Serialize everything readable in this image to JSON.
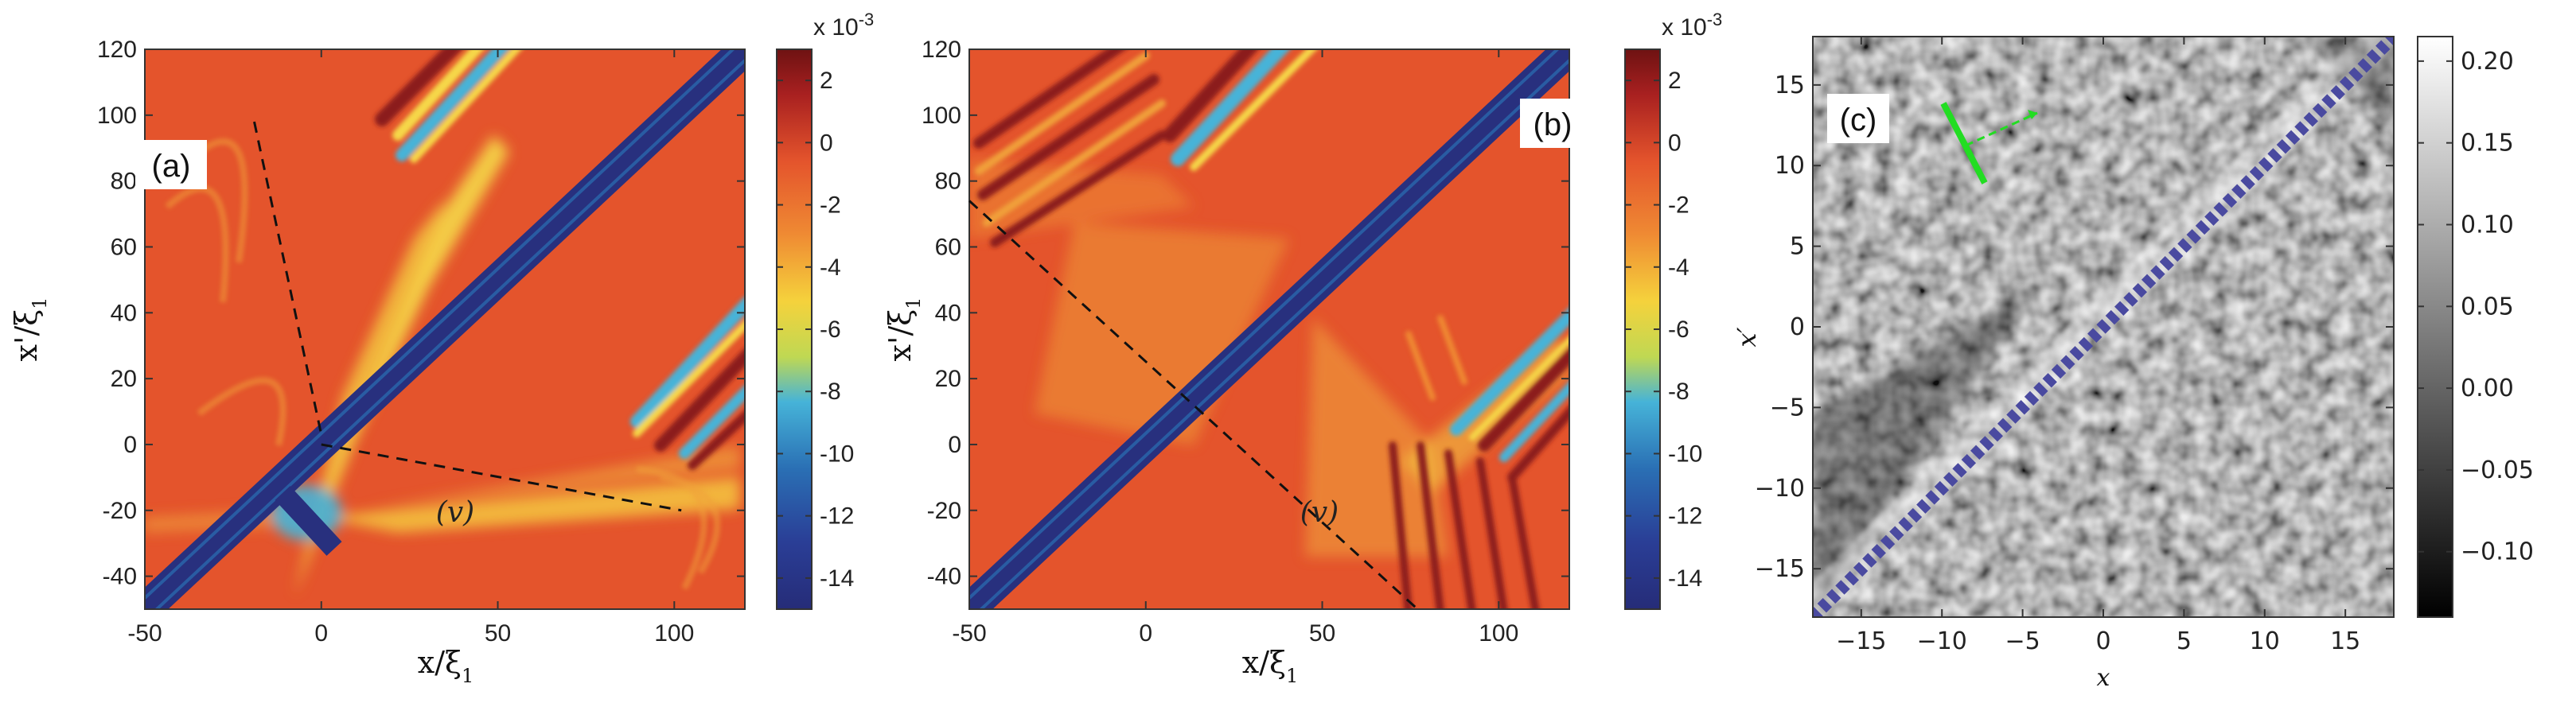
{
  "colors": {
    "bg_red": "#e4542c",
    "blue": "#28307e",
    "yellow": "#f1d84a",
    "cyan": "#46b3d8",
    "darkred": "#8b1a1a",
    "gray": "#8a8a8a",
    "green": "#22dd22"
  },
  "chart_data": [
    {
      "type": "heatmap",
      "panel_label": "(a)",
      "xlabel": "x/ξ",
      "xlabel_sub": "1",
      "ylabel": "x'/ξ",
      "ylabel_sub": "1",
      "xlim": [
        -50,
        120
      ],
      "ylim": [
        -50,
        120
      ],
      "x_ticks": [
        -50,
        0,
        50,
        100
      ],
      "y_ticks": [
        -40,
        -20,
        0,
        20,
        40,
        60,
        80,
        100,
        120
      ],
      "annotation": "(v)",
      "dashed_lines": [
        {
          "from": [
            -19,
            98
          ],
          "to": [
            0,
            3
          ]
        },
        {
          "from": [
            0,
            0
          ],
          "to": [
            102,
            -20
          ]
        }
      ],
      "colorbar": {
        "exponent_label": "x 10",
        "exponent": "-3",
        "ticks": [
          "2",
          "0",
          "-2",
          "-4",
          "-6",
          "-8",
          "-10",
          "-12",
          "-14"
        ],
        "range": [
          -15,
          3
        ]
      }
    },
    {
      "type": "heatmap",
      "panel_label": "(b)",
      "xlabel": "x/ξ",
      "xlabel_sub": "1",
      "ylabel": "x'/ξ",
      "ylabel_sub": "1",
      "xlim": [
        -50,
        120
      ],
      "ylim": [
        -50,
        120
      ],
      "x_ticks": [
        -50,
        0,
        50,
        100
      ],
      "y_ticks": [
        -40,
        -20,
        0,
        20,
        40,
        60,
        80,
        100,
        120
      ],
      "annotation": "(v)",
      "dashed_lines": [
        {
          "from": [
            -50,
            74
          ],
          "to": [
            77,
            -50
          ]
        }
      ],
      "colorbar": {
        "exponent_label": "x 10",
        "exponent": "-3",
        "ticks": [
          "2",
          "0",
          "-2",
          "-4",
          "-6",
          "-8",
          "-10",
          "-12",
          "-14"
        ],
        "range": [
          -15,
          3
        ]
      }
    },
    {
      "type": "heatmap",
      "panel_label": "(c)",
      "xlabel": "x",
      "ylabel": "x′",
      "xlim": [
        -18,
        18
      ],
      "ylim": [
        -18,
        18
      ],
      "x_ticks": [
        "−15",
        "−10",
        "−5",
        "0",
        "5",
        "10",
        "15"
      ],
      "x_tick_values": [
        -15,
        -10,
        -5,
        0,
        5,
        10,
        15
      ],
      "y_ticks": [
        "−15",
        "−10",
        "−5",
        "0",
        "5",
        "10",
        "15"
      ],
      "y_tick_values": [
        -15,
        -10,
        -5,
        0,
        5,
        10,
        15
      ],
      "colorbar": {
        "ticks": [
          "0.20",
          "0.15",
          "0.10",
          "0.05",
          "0.00",
          "−0.05",
          "−0.10"
        ],
        "tick_values": [
          0.2,
          0.15,
          0.1,
          0.05,
          0.0,
          -0.05,
          -0.1
        ],
        "range": [
          -0.14,
          0.215
        ]
      }
    }
  ]
}
